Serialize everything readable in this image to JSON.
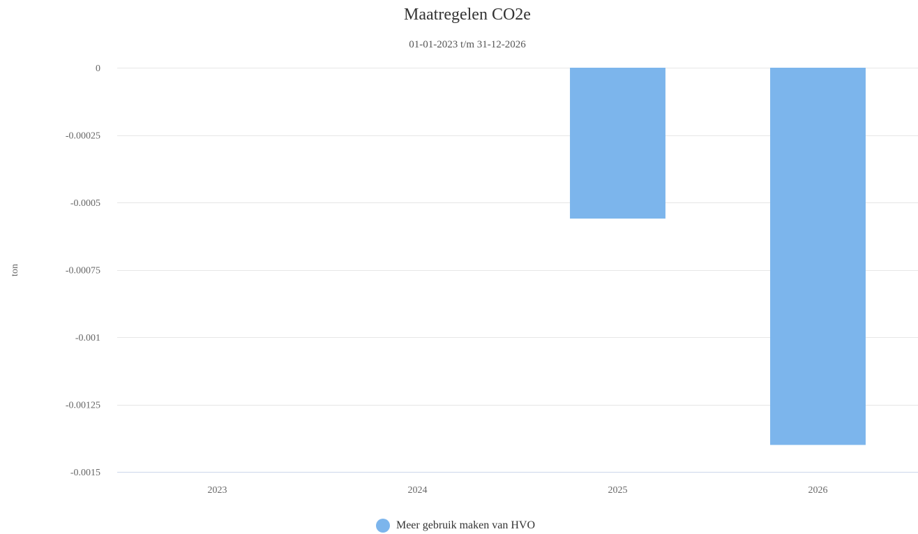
{
  "chart_data": {
    "type": "bar",
    "title": "Maatregelen CO2e",
    "subtitle": "01-01-2023 t/m 31-12-2026",
    "ylabel": "ton",
    "xlabel": "",
    "categories": [
      "2023",
      "2024",
      "2025",
      "2026"
    ],
    "series": [
      {
        "name": "Meer gebruik maken van HVO",
        "values": [
          0,
          0,
          -0.00056,
          -0.0014
        ],
        "color": "#7cb5ec"
      }
    ],
    "ylim": [
      -0.0015,
      0
    ],
    "yticks": [
      0,
      -0.00025,
      -0.0005,
      -0.00075,
      -0.001,
      -0.00125,
      -0.0015
    ],
    "ytick_labels": [
      "0",
      "-0.00025",
      "-0.0005",
      "-0.00075",
      "-0.001",
      "-0.00125",
      "-0.0015"
    ],
    "grid": true,
    "legend_position": "bottom-center"
  },
  "colors": {
    "grid": "#e6e6e6",
    "axis_line": "#ccd6eb",
    "tick_label": "#666666"
  }
}
